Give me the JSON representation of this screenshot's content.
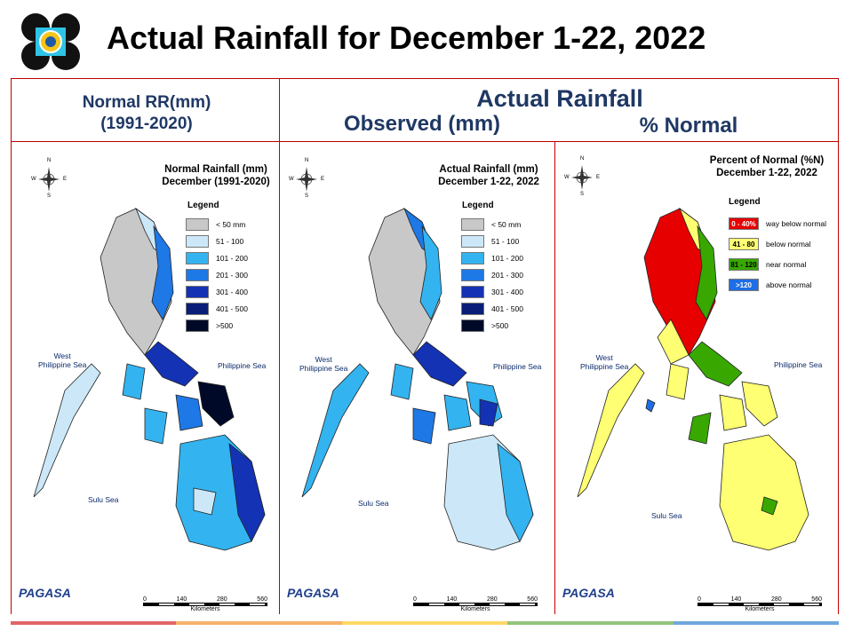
{
  "slide": {
    "title": "Actual Rainfall for December 1-22, 2022"
  },
  "headers": {
    "normal_line1": "Normal RR(mm)",
    "normal_line2": "(1991-2020)",
    "actual": "Actual Rainfall",
    "observed": "Observed (mm)",
    "percent": "% Normal"
  },
  "panels": [
    {
      "title_line1": "Normal Rainfall (mm)",
      "title_line2": "December (1991-2020)",
      "legend_title": "Legend",
      "legend": [
        {
          "label": "< 50 mm",
          "color": "#c8c8c8"
        },
        {
          "label": "51 - 100",
          "color": "#cce8f8"
        },
        {
          "label": "101 - 200",
          "color": "#33b4f0"
        },
        {
          "label": "201 - 300",
          "color": "#1e78e6"
        },
        {
          "label": "301 - 400",
          "color": "#1432b4"
        },
        {
          "label": "401 - 500",
          "color": "#0a1e78"
        },
        {
          "label": ">500",
          "color": "#000a28"
        }
      ],
      "sea_west": "West\nPhilippine Sea",
      "sea_east": "Philippine Sea",
      "sea_south": "Sulu Sea",
      "scale_labels": [
        "0",
        "140",
        "280",
        "560"
      ],
      "scale_unit": "Kilometers",
      "brand": "PAGASA"
    },
    {
      "title_line1": "Actual Rainfall (mm)",
      "title_line2": "December 1-22, 2022",
      "legend_title": "Legend",
      "legend": [
        {
          "label": "< 50 mm",
          "color": "#c8c8c8"
        },
        {
          "label": "51 - 100",
          "color": "#cce8f8"
        },
        {
          "label": "101 - 200",
          "color": "#33b4f0"
        },
        {
          "label": "201 - 300",
          "color": "#1e78e6"
        },
        {
          "label": "301 - 400",
          "color": "#1432b4"
        },
        {
          "label": "401 - 500",
          "color": "#0a1e78"
        },
        {
          "label": ">500",
          "color": "#000a28"
        }
      ],
      "sea_west": "West\nPhilippine Sea",
      "sea_east": "Philippine Sea",
      "sea_south": "Sulu Sea",
      "scale_labels": [
        "0",
        "140",
        "280",
        "560"
      ],
      "scale_unit": "Kilometers",
      "brand": "PAGASA"
    },
    {
      "title_line1": "Percent of Normal (%N)",
      "title_line2": "December 1-22, 2022",
      "legend_title": "Legend",
      "legend": [
        {
          "swatch": "0 - 40%",
          "label": "way below normal",
          "color": "#e60000"
        },
        {
          "swatch": "41 - 80",
          "label": "below normal",
          "color": "#ffff73"
        },
        {
          "swatch": "81 - 120",
          "label": "near normal",
          "color": "#38a800"
        },
        {
          "swatch": ">120",
          "label": "above normal",
          "color": "#1e6ee6"
        }
      ],
      "sea_west": "West\nPhilippine Sea",
      "sea_east": "Philippine Sea",
      "sea_south": "Sulu Sea",
      "scale_labels": [
        "0",
        "140",
        "280",
        "560"
      ],
      "scale_unit": "Kilometers",
      "brand": "PAGASA"
    }
  ],
  "compass": {
    "n": "N",
    "s": "S",
    "e": "E",
    "w": "W"
  },
  "footer_colors": [
    "#e06666",
    "#f6b26b",
    "#ffd966",
    "#93c47d",
    "#6fa8dc"
  ]
}
